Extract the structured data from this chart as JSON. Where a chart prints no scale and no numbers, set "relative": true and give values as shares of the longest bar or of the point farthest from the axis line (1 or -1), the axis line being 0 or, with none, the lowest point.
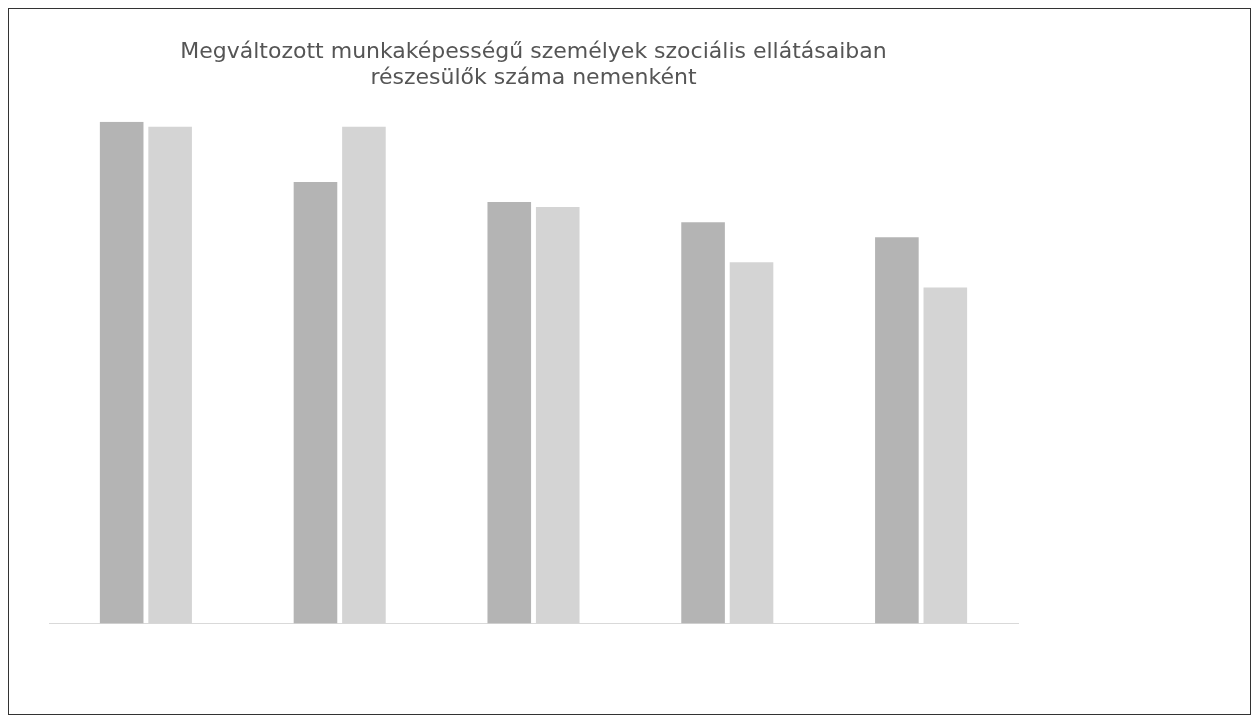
{
  "chart_data": {
    "type": "bar",
    "title": "Megváltozott munkaképességű személyek szociális ellátásaiban\nrészesülők száma nemenként",
    "relative": true,
    "categories": [
      null,
      null,
      null,
      null,
      null
    ],
    "series": [
      {
        "color": "#b4b4b4",
        "values": [
          1,
          0.88,
          0.84,
          0.8,
          0.77
        ]
      },
      {
        "color": "#d4d4d4",
        "values": [
          0.99,
          0.99,
          0.83,
          0.72,
          0.67
        ]
      }
    ]
  }
}
